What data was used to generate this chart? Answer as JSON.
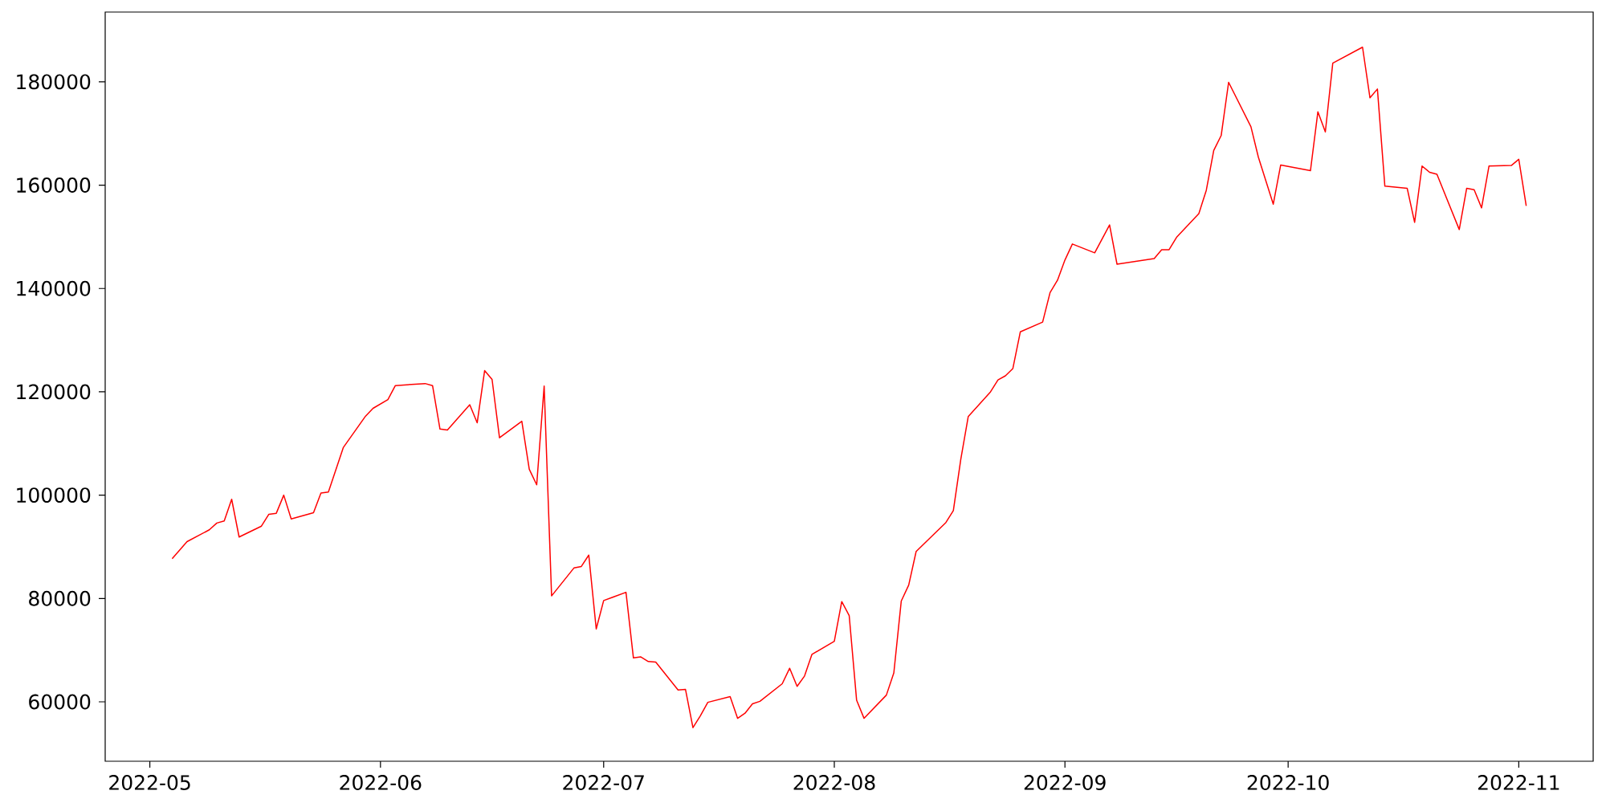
{
  "chart_data": {
    "type": "line",
    "color": "#ff0000",
    "x": [
      "2022-05-04",
      "2022-05-06",
      "2022-05-09",
      "2022-05-10",
      "2022-05-11",
      "2022-05-12",
      "2022-05-13",
      "2022-05-16",
      "2022-05-17",
      "2022-05-18",
      "2022-05-19",
      "2022-05-20",
      "2022-05-23",
      "2022-05-24",
      "2022-05-25",
      "2022-05-27",
      "2022-05-30",
      "2022-05-31",
      "2022-06-02",
      "2022-06-03",
      "2022-06-07",
      "2022-06-08",
      "2022-06-09",
      "2022-06-10",
      "2022-06-13",
      "2022-06-14",
      "2022-06-15",
      "2022-06-16",
      "2022-06-17",
      "2022-06-20",
      "2022-06-21",
      "2022-06-22",
      "2022-06-23",
      "2022-06-24",
      "2022-06-27",
      "2022-06-28",
      "2022-06-29",
      "2022-06-30",
      "2022-07-01",
      "2022-07-04",
      "2022-07-05",
      "2022-07-06",
      "2022-07-07",
      "2022-07-08",
      "2022-07-11",
      "2022-07-12",
      "2022-07-13",
      "2022-07-14",
      "2022-07-15",
      "2022-07-18",
      "2022-07-19",
      "2022-07-20",
      "2022-07-21",
      "2022-07-22",
      "2022-07-25",
      "2022-07-26",
      "2022-07-27",
      "2022-07-28",
      "2022-07-29",
      "2022-08-01",
      "2022-08-02",
      "2022-08-03",
      "2022-08-04",
      "2022-08-05",
      "2022-08-08",
      "2022-08-09",
      "2022-08-10",
      "2022-08-11",
      "2022-08-12",
      "2022-08-16",
      "2022-08-17",
      "2022-08-18",
      "2022-08-19",
      "2022-08-22",
      "2022-08-23",
      "2022-08-24",
      "2022-08-25",
      "2022-08-26",
      "2022-08-29",
      "2022-08-30",
      "2022-08-31",
      "2022-09-01",
      "2022-09-02",
      "2022-09-05",
      "2022-09-07",
      "2022-09-08",
      "2022-09-13",
      "2022-09-14",
      "2022-09-15",
      "2022-09-16",
      "2022-09-19",
      "2022-09-20",
      "2022-09-21",
      "2022-09-22",
      "2022-09-23",
      "2022-09-26",
      "2022-09-27",
      "2022-09-29",
      "2022-09-30",
      "2022-10-04",
      "2022-10-05",
      "2022-10-06",
      "2022-10-07",
      "2022-10-11",
      "2022-10-12",
      "2022-10-13",
      "2022-10-14",
      "2022-10-17",
      "2022-10-18",
      "2022-10-19",
      "2022-10-20",
      "2022-10-21",
      "2022-10-24",
      "2022-10-25",
      "2022-10-26",
      "2022-10-27",
      "2022-10-28",
      "2022-10-31",
      "2022-11-01",
      "2022-11-02"
    ],
    "values": [
      87700,
      91000,
      93300,
      94600,
      95000,
      99200,
      91900,
      94000,
      96300,
      96500,
      100000,
      95400,
      96600,
      100400,
      100600,
      109200,
      115300,
      116800,
      118500,
      121200,
      121600,
      121200,
      112800,
      112600,
      117500,
      114000,
      124100,
      122400,
      111100,
      114300,
      105000,
      102000,
      121100,
      80500,
      85900,
      86200,
      88400,
      74100,
      79600,
      81200,
      68500,
      68700,
      67800,
      67700,
      62300,
      62400,
      55000,
      57300,
      59900,
      61000,
      56800,
      57800,
      59600,
      60100,
      63500,
      66500,
      63000,
      65000,
      69200,
      71700,
      79400,
      76700,
      60300,
      56800,
      61300,
      65600,
      79500,
      82600,
      89100,
      94700,
      97000,
      106900,
      115200,
      120000,
      122300,
      123100,
      124500,
      131600,
      133500,
      139200,
      141600,
      145500,
      148600,
      146900,
      152300,
      144700,
      145800,
      147500,
      147500,
      149900,
      154500,
      159000,
      166700,
      169600,
      179900,
      171300,
      165400,
      156300,
      163900,
      162800,
      174200,
      170300,
      183600,
      186700,
      176900,
      178600,
      159800,
      159400,
      152800,
      163700,
      162500,
      162100,
      151400,
      159400,
      159100,
      155600,
      163700,
      163800,
      165000,
      156000
    ],
    "xlim": [
      "2022-04-25",
      "2022-11-11"
    ],
    "ylim": [
      48500,
      193500
    ],
    "xticks": [
      "2022-05",
      "2022-06",
      "2022-07",
      "2022-08",
      "2022-09",
      "2022-10",
      "2022-11"
    ],
    "yticks": [
      60000,
      80000,
      100000,
      120000,
      140000,
      160000,
      180000
    ]
  }
}
